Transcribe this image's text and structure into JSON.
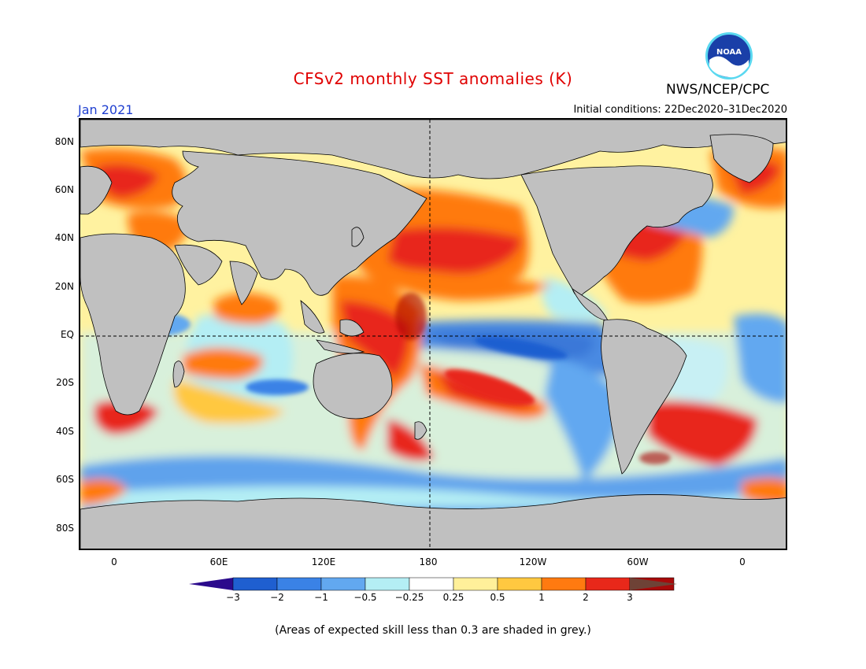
{
  "title": "CFSv2 monthly SST anomalies (K)",
  "org": "NWS/NCEP/CPC",
  "logo_text": "NOAA",
  "valid_month": "Jan 2021",
  "initial_conditions": "Initial conditions: 22Dec2020–31Dec2020",
  "lat_labels": [
    "80N",
    "60N",
    "40N",
    "20N",
    "EQ",
    "20S",
    "40S",
    "60S",
    "80S"
  ],
  "lon_labels": [
    "0",
    "60E",
    "120E",
    "180",
    "120W",
    "60W",
    "0"
  ],
  "colorbar": {
    "colors": [
      "#2b0a8c",
      "#1f5fd0",
      "#3a82e6",
      "#62a8f0",
      "#b4eef4",
      "#ffffff",
      "#fff09a",
      "#ffc840",
      "#ff7a10",
      "#e8281a",
      "#a80a0a",
      "#6e4236"
    ],
    "labels": [
      "−3",
      "−2",
      "−1",
      "−0.5",
      "−0.25",
      "0.25",
      "0.5",
      "1",
      "2",
      "3"
    ]
  },
  "footnote": "(Areas of expected skill less than 0.3 are shaded in grey.)",
  "colors": {
    "land": "#c0c0c0",
    "ocean_base": "#fff6b0",
    "title": "#e00000",
    "valid": "#1f3fd0"
  }
}
